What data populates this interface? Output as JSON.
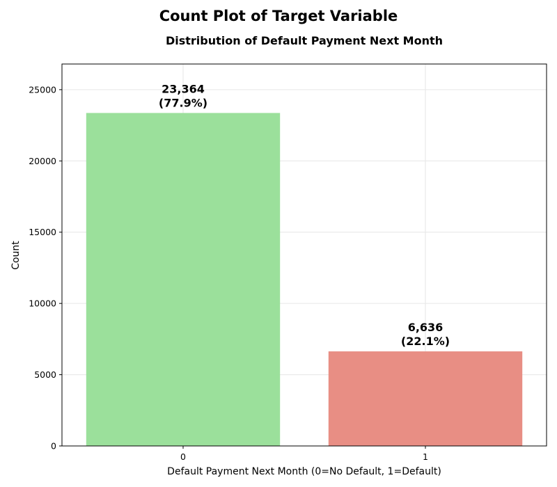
{
  "chart_data": {
    "type": "bar",
    "suptitle": "Count Plot of Target Variable",
    "title": "Distribution of Default Payment Next Month",
    "xlabel": "Default Payment Next Month (0=No Default, 1=Default)",
    "ylabel": "Count",
    "categories": [
      "0",
      "1"
    ],
    "values": [
      23364,
      6636
    ],
    "value_labels": [
      "23,364",
      "6,636"
    ],
    "percent_labels": [
      "(77.9%)",
      "(22.1%)"
    ],
    "colors": [
      "#9be09b",
      "#e88e84"
    ],
    "ylim": [
      0,
      26800
    ],
    "yticks": [
      0,
      5000,
      10000,
      15000,
      20000,
      25000
    ],
    "grid": true,
    "legend": "none"
  }
}
